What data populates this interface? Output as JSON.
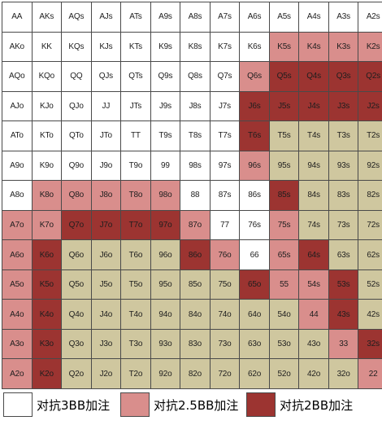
{
  "colors": {
    "W": "#ffffff",
    "L": "#d98e8c",
    "D": "#9c3431",
    "T": "#cfc79f"
  },
  "grid": {
    "rows": [
      [
        [
          "AA",
          "W"
        ],
        [
          "AKs",
          "W"
        ],
        [
          "AQs",
          "W"
        ],
        [
          "AJs",
          "W"
        ],
        [
          "ATs",
          "W"
        ],
        [
          "A9s",
          "W"
        ],
        [
          "A8s",
          "W"
        ],
        [
          "A7s",
          "W"
        ],
        [
          "A6s",
          "W"
        ],
        [
          "A5s",
          "W"
        ],
        [
          "A4s",
          "W"
        ],
        [
          "A3s",
          "W"
        ],
        [
          "A2s",
          "W"
        ]
      ],
      [
        [
          "AKo",
          "W"
        ],
        [
          "KK",
          "W"
        ],
        [
          "KQs",
          "W"
        ],
        [
          "KJs",
          "W"
        ],
        [
          "KTs",
          "W"
        ],
        [
          "K9s",
          "W"
        ],
        [
          "K8s",
          "W"
        ],
        [
          "K7s",
          "W"
        ],
        [
          "K6s",
          "W"
        ],
        [
          "K5s",
          "L"
        ],
        [
          "K4s",
          "L"
        ],
        [
          "K3s",
          "L"
        ],
        [
          "K2s",
          "L"
        ]
      ],
      [
        [
          "AQo",
          "W"
        ],
        [
          "KQo",
          "W"
        ],
        [
          "QQ",
          "W"
        ],
        [
          "QJs",
          "W"
        ],
        [
          "QTs",
          "W"
        ],
        [
          "Q9s",
          "W"
        ],
        [
          "Q8s",
          "W"
        ],
        [
          "Q7s",
          "W"
        ],
        [
          "Q6s",
          "L"
        ],
        [
          "Q5s",
          "D"
        ],
        [
          "Q4s",
          "D"
        ],
        [
          "Q3s",
          "D"
        ],
        [
          "Q2s",
          "D"
        ]
      ],
      [
        [
          "AJo",
          "W"
        ],
        [
          "KJo",
          "W"
        ],
        [
          "QJo",
          "W"
        ],
        [
          "JJ",
          "W"
        ],
        [
          "JTs",
          "W"
        ],
        [
          "J9s",
          "W"
        ],
        [
          "J8s",
          "W"
        ],
        [
          "J7s",
          "W"
        ],
        [
          "J6s",
          "D"
        ],
        [
          "J5s",
          "D"
        ],
        [
          "J4s",
          "D"
        ],
        [
          "J3s",
          "D"
        ],
        [
          "J2s",
          "D"
        ]
      ],
      [
        [
          "ATo",
          "W"
        ],
        [
          "KTo",
          "W"
        ],
        [
          "QTo",
          "W"
        ],
        [
          "JTo",
          "W"
        ],
        [
          "TT",
          "W"
        ],
        [
          "T9s",
          "W"
        ],
        [
          "T8s",
          "W"
        ],
        [
          "T7s",
          "W"
        ],
        [
          "T6s",
          "D"
        ],
        [
          "T5s",
          "T"
        ],
        [
          "T4s",
          "T"
        ],
        [
          "T3s",
          "T"
        ],
        [
          "T2s",
          "T"
        ]
      ],
      [
        [
          "A9o",
          "W"
        ],
        [
          "K9o",
          "W"
        ],
        [
          "Q9o",
          "W"
        ],
        [
          "J9o",
          "W"
        ],
        [
          "T9o",
          "W"
        ],
        [
          "99",
          "W"
        ],
        [
          "98s",
          "W"
        ],
        [
          "97s",
          "W"
        ],
        [
          "96s",
          "L"
        ],
        [
          "95s",
          "T"
        ],
        [
          "94s",
          "T"
        ],
        [
          "93s",
          "T"
        ],
        [
          "92s",
          "T"
        ]
      ],
      [
        [
          "A8o",
          "W"
        ],
        [
          "K8o",
          "L"
        ],
        [
          "Q8o",
          "L"
        ],
        [
          "J8o",
          "L"
        ],
        [
          "T8o",
          "L"
        ],
        [
          "98o",
          "L"
        ],
        [
          "88",
          "W"
        ],
        [
          "87s",
          "W"
        ],
        [
          "86s",
          "W"
        ],
        [
          "85s",
          "D"
        ],
        [
          "84s",
          "T"
        ],
        [
          "83s",
          "T"
        ],
        [
          "82s",
          "T"
        ]
      ],
      [
        [
          "A7o",
          "L"
        ],
        [
          "K7o",
          "L"
        ],
        [
          "Q7o",
          "D"
        ],
        [
          "J7o",
          "D"
        ],
        [
          "T7o",
          "D"
        ],
        [
          "97o",
          "D"
        ],
        [
          "87o",
          "L"
        ],
        [
          "77",
          "W"
        ],
        [
          "76s",
          "W"
        ],
        [
          "75s",
          "L"
        ],
        [
          "74s",
          "T"
        ],
        [
          "73s",
          "T"
        ],
        [
          "72s",
          "T"
        ]
      ],
      [
        [
          "A6o",
          "L"
        ],
        [
          "K6o",
          "D"
        ],
        [
          "Q6o",
          "T"
        ],
        [
          "J6o",
          "T"
        ],
        [
          "T6o",
          "T"
        ],
        [
          "96o",
          "T"
        ],
        [
          "86o",
          "D"
        ],
        [
          "76o",
          "L"
        ],
        [
          "66",
          "W"
        ],
        [
          "65s",
          "L"
        ],
        [
          "64s",
          "D"
        ],
        [
          "63s",
          "T"
        ],
        [
          "62s",
          "T"
        ]
      ],
      [
        [
          "A5o",
          "L"
        ],
        [
          "K5o",
          "D"
        ],
        [
          "Q5o",
          "T"
        ],
        [
          "J5o",
          "T"
        ],
        [
          "T5o",
          "T"
        ],
        [
          "95o",
          "T"
        ],
        [
          "85o",
          "T"
        ],
        [
          "75o",
          "T"
        ],
        [
          "65o",
          "D"
        ],
        [
          "55",
          "L"
        ],
        [
          "54s",
          "L"
        ],
        [
          "53s",
          "D"
        ],
        [
          "52s",
          "T"
        ]
      ],
      [
        [
          "A4o",
          "L"
        ],
        [
          "K4o",
          "D"
        ],
        [
          "Q4o",
          "T"
        ],
        [
          "J4o",
          "T"
        ],
        [
          "T4o",
          "T"
        ],
        [
          "94o",
          "T"
        ],
        [
          "84o",
          "T"
        ],
        [
          "74o",
          "T"
        ],
        [
          "64o",
          "T"
        ],
        [
          "54o",
          "T"
        ],
        [
          "44",
          "L"
        ],
        [
          "43s",
          "D"
        ],
        [
          "42s",
          "T"
        ]
      ],
      [
        [
          "A3o",
          "L"
        ],
        [
          "K3o",
          "D"
        ],
        [
          "Q3o",
          "T"
        ],
        [
          "J3o",
          "T"
        ],
        [
          "T3o",
          "T"
        ],
        [
          "93o",
          "T"
        ],
        [
          "83o",
          "T"
        ],
        [
          "73o",
          "T"
        ],
        [
          "63o",
          "T"
        ],
        [
          "53o",
          "T"
        ],
        [
          "43o",
          "T"
        ],
        [
          "33",
          "L"
        ],
        [
          "32s",
          "D"
        ]
      ],
      [
        [
          "A2o",
          "L"
        ],
        [
          "K2o",
          "D"
        ],
        [
          "Q2o",
          "T"
        ],
        [
          "J2o",
          "T"
        ],
        [
          "T2o",
          "T"
        ],
        [
          "92o",
          "T"
        ],
        [
          "82o",
          "T"
        ],
        [
          "72o",
          "T"
        ],
        [
          "62o",
          "T"
        ],
        [
          "52o",
          "T"
        ],
        [
          "42o",
          "T"
        ],
        [
          "32o",
          "T"
        ],
        [
          "22",
          "L"
        ]
      ]
    ]
  },
  "legend": [
    {
      "label": "对抗3BB加注",
      "color": "#ffffff"
    },
    {
      "label": "对抗2.5BB加注",
      "color": "#d98e8c"
    },
    {
      "label": "对抗2BB加注",
      "color": "#9c3431"
    }
  ]
}
